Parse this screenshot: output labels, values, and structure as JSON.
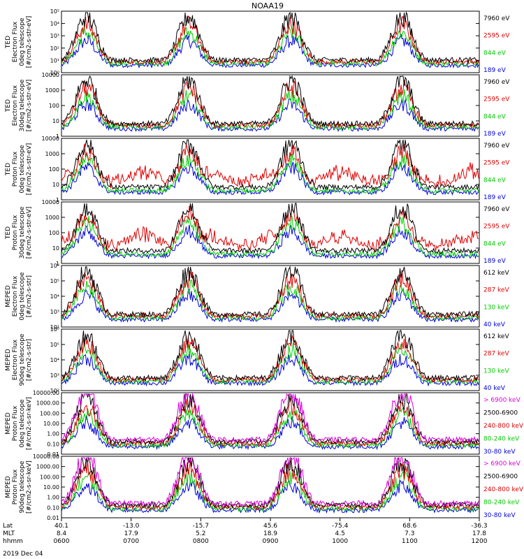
{
  "title": "NOAA19",
  "date_label": "2019 Dec 04",
  "chart_data": [
    {
      "type": "line",
      "ylabel_lines": [
        "TED",
        "Electron Flux",
        "0deg telescope",
        "[#/cm2-s-str-eV]"
      ],
      "yscale": "log",
      "ylim": [
        1,
        100000
      ],
      "ytick_labels": [
        "10⁰",
        "10¹",
        "10²",
        "10³",
        "10⁴",
        "10⁵"
      ],
      "legend": [
        {
          "name": "7960 eV",
          "color": "#000000"
        },
        {
          "name": "2595 eV",
          "color": "#e00000"
        },
        {
          "name": "844 eV",
          "color": "#00cc00"
        },
        {
          "name": "189 eV",
          "color": "#0000dd"
        }
      ]
    },
    {
      "type": "line",
      "ylabel_lines": [
        "TED",
        "Electron Flux",
        "30deg telescope",
        "[#/cm2-s-str-eV]"
      ],
      "yscale": "log",
      "ylim": [
        1,
        10000
      ],
      "ytick_labels": [
        "1",
        "10",
        "100",
        "1000",
        "10000"
      ],
      "legend": [
        {
          "name": "7960 eV",
          "color": "#000000"
        },
        {
          "name": "2595 eV",
          "color": "#e00000"
        },
        {
          "name": "844 eV",
          "color": "#00cc00"
        },
        {
          "name": "189 eV",
          "color": "#0000dd"
        }
      ]
    },
    {
      "type": "line",
      "ylabel_lines": [
        "TED",
        "Proton Flux",
        "0deg telescope",
        "[#/cm2-s-str-eV]"
      ],
      "yscale": "log",
      "ylim": [
        1,
        10000
      ],
      "ytick_labels": [
        "1",
        "10",
        "100",
        "1000",
        "10000"
      ],
      "legend": [
        {
          "name": "7960 eV",
          "color": "#000000"
        },
        {
          "name": "2595 eV",
          "color": "#e00000"
        },
        {
          "name": "844 eV",
          "color": "#00cc00"
        },
        {
          "name": "189 eV",
          "color": "#0000dd"
        }
      ]
    },
    {
      "type": "line",
      "ylabel_lines": [
        "TED",
        "Proton Flux",
        "30deg telescope",
        "[#/cm2-s-str-eV]"
      ],
      "yscale": "log",
      "ylim": [
        1,
        10000
      ],
      "ytick_labels": [
        "1",
        "10",
        "100",
        "1000",
        "10000"
      ],
      "legend": [
        {
          "name": "7960 eV",
          "color": "#000000"
        },
        {
          "name": "2595 eV",
          "color": "#e00000"
        },
        {
          "name": "844 eV",
          "color": "#00cc00"
        },
        {
          "name": "189 eV",
          "color": "#0000dd"
        }
      ]
    },
    {
      "type": "line",
      "ylabel_lines": [
        "MEPED",
        "Electron Flux",
        "0deg telescope",
        "[#/cm2-s-str]"
      ],
      "yscale": "log",
      "ylim": [
        100,
        1000000
      ],
      "ytick_labels": [
        "10²",
        "10³",
        "10⁴",
        "10⁵",
        "10⁶"
      ],
      "legend": [
        {
          "name": "612 keV",
          "color": "#000000"
        },
        {
          "name": "287 keV",
          "color": "#e00000"
        },
        {
          "name": "130 keV",
          "color": "#00cc00"
        },
        {
          "name": "40 keV",
          "color": "#0000dd"
        }
      ]
    },
    {
      "type": "line",
      "ylabel_lines": [
        "MEPED",
        "Electron Flux",
        "90deg telescope",
        "[#/cm2-s-str]"
      ],
      "yscale": "log",
      "ylim": [
        100,
        1000000
      ],
      "ytick_labels": [
        "10²",
        "10³",
        "10⁴",
        "10⁵",
        "10⁶"
      ],
      "legend": [
        {
          "name": "612 keV",
          "color": "#000000"
        },
        {
          "name": "287 keV",
          "color": "#e00000"
        },
        {
          "name": "130 keV",
          "color": "#00cc00"
        },
        {
          "name": "40 keV",
          "color": "#0000dd"
        }
      ]
    },
    {
      "type": "line",
      "ylabel_lines": [
        "MEPED",
        "Proton Flux",
        "0deg telescope",
        "[#/cm2-s-sr-keV]"
      ],
      "yscale": "log",
      "ylim": [
        0.01,
        10000
      ],
      "ytick_labels": [
        "0.01",
        "0.10",
        "1.00",
        "10.00",
        "100.00",
        "1000.00",
        "10000.00"
      ],
      "legend": [
        {
          "name": "> 6900 keV",
          "color": "#dd00dd"
        },
        {
          "name": "2500-6900",
          "color": "#000000"
        },
        {
          "name": "240-800 keV",
          "color": "#e00000"
        },
        {
          "name": "80-240 keV",
          "color": "#00cc00"
        },
        {
          "name": "30-80 keV",
          "color": "#0000dd"
        }
      ]
    },
    {
      "type": "line",
      "ylabel_lines": [
        "MEPED",
        "Proton Flux",
        "90deg telescope",
        "[#/cm2-s-sr-keV]"
      ],
      "yscale": "log",
      "ylim": [
        0.01,
        10000
      ],
      "ytick_labels": [
        "0.01",
        "0.10",
        "1.00",
        "10.00",
        "100.00",
        "1000.00",
        "10000.00"
      ],
      "legend": [
        {
          "name": "> 6900 keV",
          "color": "#dd00dd"
        },
        {
          "name": "2500-6900",
          "color": "#000000"
        },
        {
          "name": "240-800 keV",
          "color": "#e00000"
        },
        {
          "name": "80-240 keV",
          "color": "#00cc00"
        },
        {
          "name": "30-80 keV",
          "color": "#0000dd"
        }
      ]
    }
  ],
  "x_axis": {
    "row_labels": [
      "Lat",
      "MLT",
      "hhmm"
    ],
    "columns": [
      {
        "lat": "40.1",
        "mlt": "8.4",
        "hhmm": "0600"
      },
      {
        "lat": "-13.0",
        "mlt": "17.9",
        "hhmm": "0700"
      },
      {
        "lat": "-15.7",
        "mlt": "5.2",
        "hhmm": "0800"
      },
      {
        "lat": "45.6",
        "mlt": "18.9",
        "hhmm": "0900"
      },
      {
        "lat": "-75.4",
        "mlt": "4.5",
        "hhmm": "1000"
      },
      {
        "lat": "68.6",
        "mlt": "7.3",
        "hhmm": "1100"
      },
      {
        "lat": "-36.3",
        "mlt": "17.8",
        "hhmm": "1200"
      }
    ]
  }
}
